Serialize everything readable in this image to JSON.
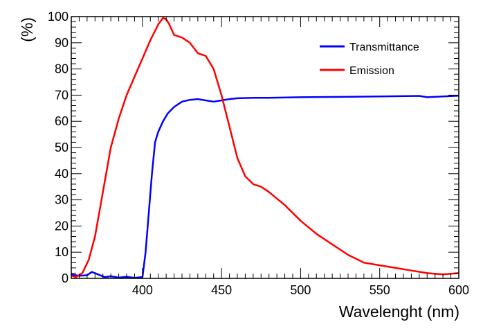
{
  "chart_data": {
    "type": "line",
    "title": "",
    "xlabel": "Wavelenght (nm)",
    "ylabel": "(%)",
    "xlim": [
      355,
      600
    ],
    "ylim": [
      0,
      100
    ],
    "grid": false,
    "legend_position": "top-right",
    "x_ticks": [
      {
        "value": 400,
        "label": "400"
      },
      {
        "value": 450,
        "label": "450"
      },
      {
        "value": 500,
        "label": "500"
      },
      {
        "value": 550,
        "label": "550"
      },
      {
        "value": 600,
        "label": "600"
      }
    ],
    "y_ticks": [
      {
        "value": 0,
        "label": "0"
      },
      {
        "value": 10,
        "label": "10"
      },
      {
        "value": 20,
        "label": "20"
      },
      {
        "value": 30,
        "label": "30"
      },
      {
        "value": 40,
        "label": "40"
      },
      {
        "value": 50,
        "label": "50"
      },
      {
        "value": 60,
        "label": "60"
      },
      {
        "value": 70,
        "label": "70"
      },
      {
        "value": 80,
        "label": "80"
      },
      {
        "value": 90,
        "label": "90"
      },
      {
        "value": 100,
        "label": "100"
      }
    ],
    "series": [
      {
        "name": "Transmittance",
        "color": "#0000ff",
        "x": [
          355,
          360,
          365,
          368,
          372,
          376,
          380,
          385,
          390,
          395,
          400,
          402,
          404,
          406,
          408,
          410,
          413,
          416,
          420,
          425,
          430,
          435,
          440,
          445,
          450,
          455,
          460,
          470,
          480,
          500,
          520,
          550,
          575,
          580,
          590,
          600
        ],
        "y": [
          1.5,
          1.0,
          1.2,
          2.5,
          1.5,
          0.5,
          0.8,
          0.3,
          0.6,
          0.2,
          0.5,
          10,
          25,
          40,
          52,
          56,
          60,
          63,
          65.5,
          67.5,
          68.2,
          68.5,
          68.0,
          67.5,
          68.0,
          68.5,
          68.8,
          69.0,
          69.0,
          69.2,
          69.3,
          69.5,
          69.7,
          69.2,
          69.5,
          69.8
        ]
      },
      {
        "name": "Emission",
        "color": "#ff0000",
        "x": [
          355,
          358,
          362,
          366,
          370,
          375,
          380,
          385,
          390,
          395,
          400,
          405,
          410,
          413,
          415,
          417,
          420,
          425,
          430,
          435,
          440,
          445,
          450,
          455,
          460,
          465,
          470,
          475,
          480,
          490,
          500,
          510,
          520,
          530,
          540,
          550,
          560,
          570,
          580,
          590,
          600
        ],
        "y": [
          1,
          0.5,
          2,
          7,
          16,
          33,
          50,
          61,
          70,
          77,
          84,
          91,
          97,
          99.5,
          99,
          97,
          93,
          92,
          90,
          86,
          85,
          80,
          70,
          58,
          46,
          39,
          36,
          35,
          33,
          28,
          22,
          17,
          13,
          9,
          6,
          5,
          4,
          3,
          2,
          1.5,
          2
        ]
      }
    ]
  }
}
